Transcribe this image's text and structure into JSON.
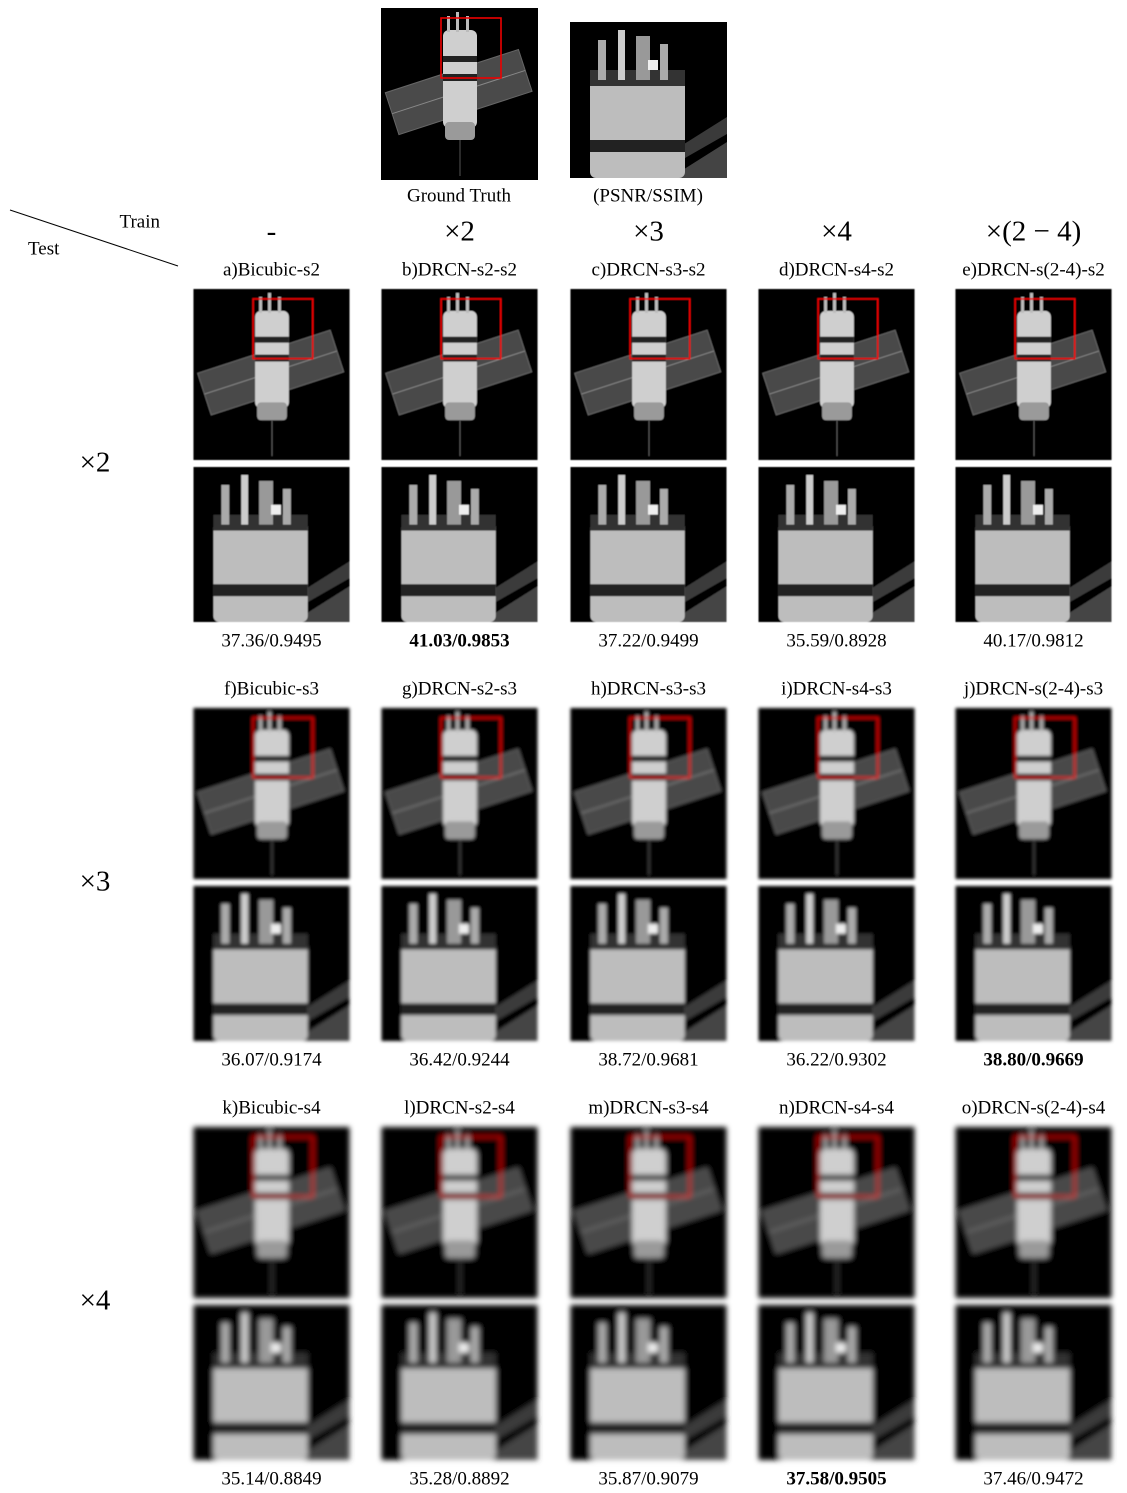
{
  "top": {
    "ground_truth_caption": "Ground Truth",
    "crop_caption": "(PSNR/SSIM)"
  },
  "corner": {
    "train": "Train",
    "test": "Test"
  },
  "columns": [
    "-",
    "×2",
    "×3",
    "×4",
    "×(2 − 4)"
  ],
  "rows": [
    {
      "scale": "×2",
      "cells": [
        {
          "label": "a)Bicubic-s2",
          "metric": "37.36/0.9495",
          "bold": false
        },
        {
          "label": "b)DRCN-s2-s2",
          "metric": "41.03/0.9853",
          "bold": true
        },
        {
          "label": "c)DRCN-s3-s2",
          "metric": "37.22/0.9499",
          "bold": false
        },
        {
          "label": "d)DRCN-s4-s2",
          "metric": "35.59/0.8928",
          "bold": false
        },
        {
          "label": "e)DRCN-s(2-4)-s2",
          "metric": "40.17/0.9812",
          "bold": false
        }
      ]
    },
    {
      "scale": "×3",
      "cells": [
        {
          "label": "f)Bicubic-s3",
          "metric": "36.07/0.9174",
          "bold": false
        },
        {
          "label": "g)DRCN-s2-s3",
          "metric": "36.42/0.9244",
          "bold": false
        },
        {
          "label": "h)DRCN-s3-s3",
          "metric": "38.72/0.9681",
          "bold": false
        },
        {
          "label": "i)DRCN-s4-s3",
          "metric": "36.22/0.9302",
          "bold": false
        },
        {
          "label": "j)DRCN-s(2-4)-s3",
          "metric": "38.80/0.9669",
          "bold": true
        }
      ]
    },
    {
      "scale": "×4",
      "cells": [
        {
          "label": "k)Bicubic-s4",
          "metric": "35.14/0.8849",
          "bold": false
        },
        {
          "label": "l)DRCN-s2-s4",
          "metric": "35.28/0.8892",
          "bold": false
        },
        {
          "label": "m)DRCN-s3-s4",
          "metric": "35.87/0.9079",
          "bold": false
        },
        {
          "label": "n)DRCN-s4-s4",
          "metric": "37.58/0.9505",
          "bold": true
        },
        {
          "label": "o)DRCN-s(2-4)-s4",
          "metric": "37.46/0.9472",
          "bold": false
        }
      ]
    }
  ]
}
